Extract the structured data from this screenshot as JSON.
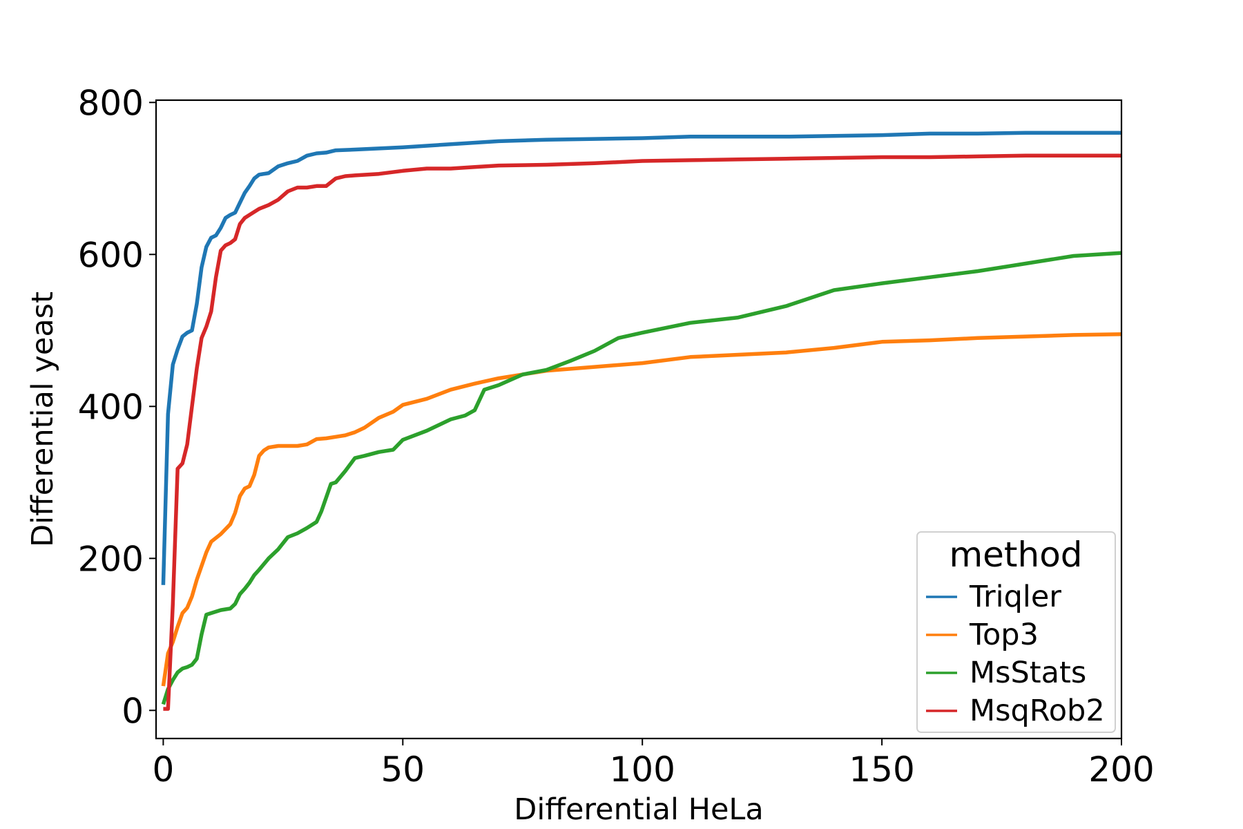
{
  "chart_data": {
    "type": "line",
    "title": "",
    "xlabel": "Differential HeLa",
    "ylabel": "Differential yeast",
    "xlim": [
      -1.5,
      200
    ],
    "ylim": [
      -37,
      803
    ],
    "xticks": [
      0,
      50,
      100,
      150,
      200
    ],
    "yticks": [
      0,
      200,
      400,
      600,
      800
    ],
    "grid": false,
    "legend": {
      "title": "method",
      "placement": "lower-right"
    },
    "series": [
      {
        "name": "Triqler",
        "color": "#1f77b4",
        "x": [
          0,
          1,
          2,
          3,
          4,
          5,
          6,
          7,
          8,
          9,
          10,
          11,
          12,
          13,
          14,
          15,
          16,
          17,
          18,
          19,
          20,
          22,
          24,
          26,
          28,
          30,
          32,
          34,
          36,
          40,
          50,
          60,
          70,
          80,
          90,
          100,
          110,
          120,
          130,
          140,
          150,
          160,
          170,
          180,
          190,
          200
        ],
        "y": [
          165,
          390,
          455,
          475,
          492,
          497,
          500,
          535,
          583,
          610,
          622,
          625,
          635,
          648,
          652,
          655,
          668,
          681,
          690,
          700,
          705,
          707,
          716,
          720,
          723,
          730,
          733,
          734,
          737,
          738,
          741,
          745,
          749,
          751,
          752,
          753,
          755,
          755,
          755,
          756,
          757,
          759,
          759,
          760,
          760,
          760
        ]
      },
      {
        "name": "Top3",
        "color": "#ff7f0e",
        "x": [
          0,
          1,
          2,
          3,
          4,
          5,
          6,
          7,
          8,
          9,
          10,
          12,
          14,
          15,
          16,
          17,
          18,
          19,
          20,
          21,
          22,
          24,
          26,
          28,
          30,
          32,
          34,
          36,
          38,
          40,
          42,
          45,
          48,
          50,
          55,
          60,
          65,
          70,
          75,
          80,
          90,
          100,
          110,
          120,
          130,
          140,
          150,
          160,
          170,
          180,
          190,
          200
        ],
        "y": [
          32,
          75,
          90,
          110,
          128,
          135,
          150,
          172,
          190,
          208,
          222,
          232,
          245,
          260,
          282,
          292,
          295,
          310,
          335,
          342,
          346,
          348,
          348,
          348,
          350,
          357,
          358,
          360,
          362,
          366,
          372,
          385,
          393,
          402,
          410,
          422,
          430,
          437,
          442,
          447,
          452,
          457,
          465,
          468,
          471,
          477,
          485,
          487,
          490,
          492,
          494,
          495
        ]
      },
      {
        "name": "MsStats",
        "color": "#2ca02c",
        "x": [
          0,
          1,
          2,
          3,
          4,
          5,
          6,
          7,
          8,
          9,
          10,
          12,
          14,
          15,
          16,
          17,
          18,
          19,
          20,
          22,
          24,
          26,
          28,
          30,
          32,
          33,
          34,
          35,
          36,
          38,
          40,
          42,
          45,
          48,
          50,
          55,
          60,
          63,
          65,
          67,
          70,
          75,
          80,
          85,
          90,
          95,
          100,
          110,
          120,
          130,
          140,
          150,
          160,
          170,
          180,
          190,
          200
        ],
        "y": [
          8,
          28,
          40,
          50,
          55,
          57,
          60,
          68,
          100,
          126,
          128,
          132,
          134,
          140,
          153,
          160,
          168,
          178,
          185,
          200,
          212,
          228,
          233,
          240,
          248,
          262,
          280,
          298,
          300,
          315,
          332,
          335,
          340,
          343,
          356,
          368,
          383,
          388,
          395,
          422,
          428,
          442,
          448,
          460,
          473,
          490,
          497,
          510,
          517,
          532,
          553,
          562,
          570,
          578,
          588,
          598,
          602
        ]
      },
      {
        "name": "MsqRob2",
        "color": "#d62728",
        "x": [
          0,
          1,
          2,
          3,
          4,
          5,
          6,
          7,
          8,
          9,
          10,
          11,
          12,
          13,
          14,
          15,
          16,
          17,
          18,
          19,
          20,
          22,
          24,
          26,
          28,
          30,
          32,
          34,
          36,
          38,
          40,
          45,
          50,
          55,
          60,
          65,
          70,
          80,
          90,
          100,
          110,
          120,
          130,
          140,
          150,
          160,
          170,
          180,
          190,
          200
        ],
        "y": [
          2,
          2,
          140,
          318,
          325,
          350,
          400,
          450,
          490,
          505,
          525,
          570,
          605,
          612,
          615,
          620,
          640,
          648,
          652,
          656,
          660,
          665,
          672,
          683,
          688,
          688,
          690,
          690,
          700,
          703,
          704,
          706,
          710,
          713,
          713,
          715,
          717,
          718,
          720,
          723,
          724,
          725,
          726,
          727,
          728,
          728,
          729,
          730,
          730,
          730
        ]
      }
    ]
  }
}
